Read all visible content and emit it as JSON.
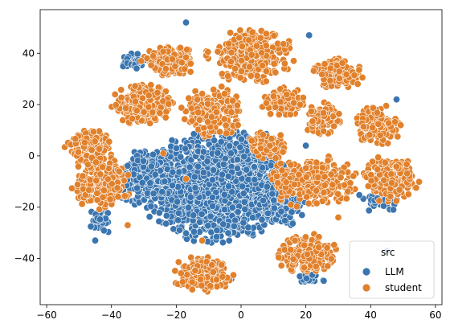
{
  "chart_data": {
    "type": "scatter",
    "title": "",
    "xlabel": "",
    "ylabel": "",
    "xlim": [
      -62,
      62
    ],
    "ylim": [
      -58,
      57
    ],
    "xticks": [
      -60,
      -40,
      -20,
      0,
      20,
      40,
      60
    ],
    "yticks": [
      -40,
      -20,
      0,
      20,
      40
    ],
    "tick_labels_x": [
      "−60",
      "−40",
      "−20",
      "0",
      "20",
      "40",
      "60"
    ],
    "tick_labels_y": [
      "−40",
      "−20",
      "0",
      "20",
      "40"
    ],
    "grid": false,
    "legend": {
      "title": "src",
      "placement": "lower-right",
      "entries": [
        "LLM",
        "student"
      ]
    },
    "series": [
      {
        "name": "LLM",
        "color": "#3a75af",
        "clusters": [
          {
            "cx": -8,
            "cy": -12,
            "rx": 24,
            "ry": 22,
            "n": 1500
          },
          {
            "cx": 2,
            "cy": -2,
            "rx": 10,
            "ry": 14,
            "n": 250
          },
          {
            "cx": -30,
            "cy": -8,
            "rx": 10,
            "ry": 12,
            "n": 200
          },
          {
            "cx": 12,
            "cy": -18,
            "rx": 8,
            "ry": 10,
            "n": 150
          },
          {
            "cx": -33,
            "cy": 37,
            "rx": 4,
            "ry": 4,
            "n": 40
          },
          {
            "cx": 21,
            "cy": -48,
            "rx": 5,
            "ry": 2,
            "n": 25
          },
          {
            "cx": 42,
            "cy": -18,
            "rx": 8,
            "ry": 4,
            "n": 40
          },
          {
            "cx": -43,
            "cy": -25,
            "rx": 4,
            "ry": 6,
            "n": 35
          }
        ],
        "points": [
          [
            -17,
            52
          ],
          [
            -19,
            38
          ],
          [
            21,
            47
          ],
          [
            -45,
            -33
          ],
          [
            48,
            22
          ],
          [
            47,
            -21
          ],
          [
            45,
            -37
          ],
          [
            20,
            4
          ],
          [
            -3,
            -48
          ],
          [
            8,
            -12
          ]
        ]
      },
      {
        "name": "student",
        "color": "#e1812c",
        "clusters": [
          {
            "cx": 3,
            "cy": 39,
            "rx": 14,
            "ry": 11,
            "n": 320
          },
          {
            "cx": -22,
            "cy": 37,
            "rx": 9,
            "ry": 6,
            "n": 140
          },
          {
            "cx": -30,
            "cy": 20,
            "rx": 11,
            "ry": 8,
            "n": 240
          },
          {
            "cx": -9,
            "cy": 17,
            "rx": 10,
            "ry": 10,
            "n": 220
          },
          {
            "cx": 13,
            "cy": 21,
            "rx": 7,
            "ry": 6,
            "n": 120
          },
          {
            "cx": 8,
            "cy": 4,
            "rx": 6,
            "ry": 6,
            "n": 100
          },
          {
            "cx": 30,
            "cy": 32,
            "rx": 8,
            "ry": 6,
            "n": 140
          },
          {
            "cx": 25,
            "cy": 14,
            "rx": 6,
            "ry": 7,
            "n": 100
          },
          {
            "cx": 42,
            "cy": 12,
            "rx": 8,
            "ry": 8,
            "n": 140
          },
          {
            "cx": -47,
            "cy": 3,
            "rx": 8,
            "ry": 8,
            "n": 150
          },
          {
            "cx": -43,
            "cy": -11,
            "rx": 10,
            "ry": 10,
            "n": 200
          },
          {
            "cx": 22,
            "cy": -10,
            "rx": 14,
            "ry": 11,
            "n": 300
          },
          {
            "cx": 46,
            "cy": -9,
            "rx": 9,
            "ry": 10,
            "n": 190
          },
          {
            "cx": 20,
            "cy": -38,
            "rx": 10,
            "ry": 8,
            "n": 180
          },
          {
            "cx": -12,
            "cy": -46,
            "rx": 10,
            "ry": 7,
            "n": 180
          }
        ],
        "points": [
          [
            -6,
            27
          ],
          [
            -24,
            1
          ],
          [
            -35,
            -27
          ],
          [
            -17,
            -9
          ],
          [
            -3,
            17
          ],
          [
            30,
            -24
          ],
          [
            36,
            28
          ],
          [
            -12,
            -33
          ]
        ]
      }
    ]
  }
}
